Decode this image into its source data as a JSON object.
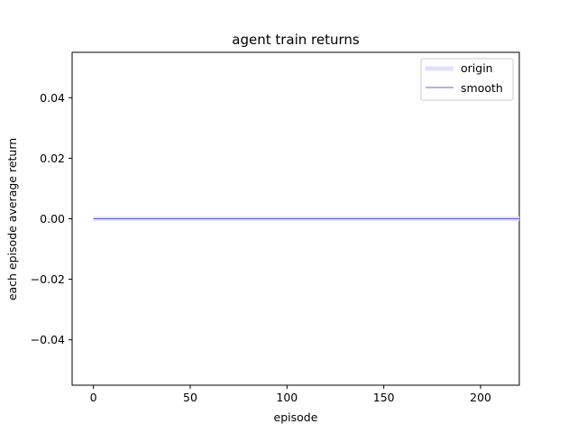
{
  "chart_data": {
    "type": "line",
    "title": "agent train returns",
    "xlabel": "episode",
    "ylabel": "each episode average return",
    "xlim": [
      -11,
      220
    ],
    "ylim": [
      -0.055,
      0.055
    ],
    "x_ticks": [
      0,
      50,
      100,
      150,
      200
    ],
    "x_tick_labels": [
      "0",
      "50",
      "100",
      "150",
      "200"
    ],
    "y_ticks": [
      -0.04,
      -0.02,
      0.0,
      0.02,
      0.04
    ],
    "y_tick_labels": [
      "−0.04",
      "−0.02",
      "0.00",
      "0.02",
      "0.04"
    ],
    "grid": false,
    "legend_position": "top-right",
    "series": [
      {
        "name": "origin",
        "color": "#e0e0ff",
        "x_range": [
          0,
          220
        ],
        "y_constant": 0.0
      },
      {
        "name": "smooth",
        "color": "#3030c0",
        "x_range": [
          0,
          220
        ],
        "y_constant": 0.0
      }
    ]
  }
}
